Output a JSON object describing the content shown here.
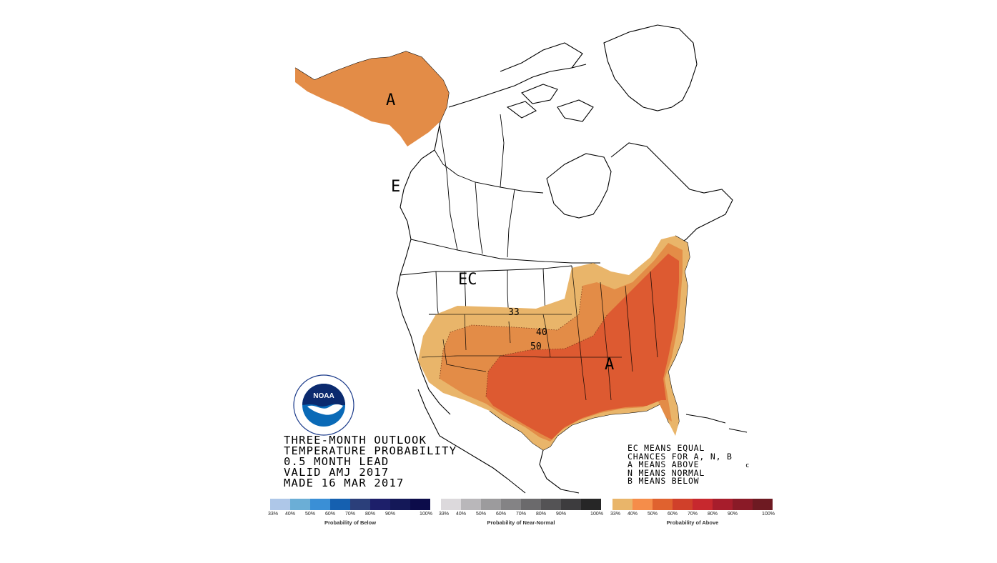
{
  "title_lines": [
    "THREE-MONTH OUTLOOK",
    "TEMPERATURE PROBABILITY",
    "0.5 MONTH LEAD",
    "VALID AMJ 2017",
    "MADE 16 MAR 2017"
  ],
  "legend_notes": [
    "EC MEANS EQUAL",
    "CHANCES FOR A, N, B",
    "A MEANS ABOVE",
    "N MEANS NORMAL",
    "B MEANS BELOW"
  ],
  "map_labels": {
    "alaska": "A",
    "east": "A",
    "ec_west": "EC",
    "ec_bc": "E",
    "contour_33": "33",
    "contour_40": "40",
    "contour_50": "50",
    "stray_c": "c"
  },
  "logo": {
    "text": "NOAA",
    "ring_top": "NATIONAL OCEANIC AND ATMOSPHERIC ADMINISTRATION",
    "ring_bottom": "U.S. DEPARTMENT OF COMMERCE"
  },
  "scales": [
    {
      "title": "Probability of Below",
      "ticks": [
        "33%",
        "40%",
        "50%",
        "60%",
        "70%",
        "80%",
        "90%",
        "100%"
      ],
      "colors": [
        "#aec7e8",
        "#6baed6",
        "#3a8fd6",
        "#1560b0",
        "#2b3f7a",
        "#1d1f6a",
        "#141858",
        "#0c0c4a"
      ]
    },
    {
      "title": "Probability of Near-Normal",
      "ticks": [
        "33%",
        "40%",
        "50%",
        "60%",
        "70%",
        "80%",
        "90%",
        "100%"
      ],
      "colors": [
        "#dcd9dc",
        "#b9b7ba",
        "#9c9b9d",
        "#848385",
        "#6b6a6c",
        "#545355",
        "#3d3c3e",
        "#262626"
      ]
    },
    {
      "title": "Probability of Above",
      "ticks": [
        "33%",
        "40%",
        "50%",
        "60%",
        "70%",
        "80%",
        "90%",
        "100%"
      ],
      "colors": [
        "#e9b56a",
        "#f58d4a",
        "#e0622f",
        "#d0402a",
        "#c7282e",
        "#a71d2c",
        "#8a1a27",
        "#6e1a22"
      ]
    }
  ],
  "category_colors": {
    "above_33": "#e9b56a",
    "above_40": "#e38c47",
    "above_50": "#dd5a31"
  }
}
